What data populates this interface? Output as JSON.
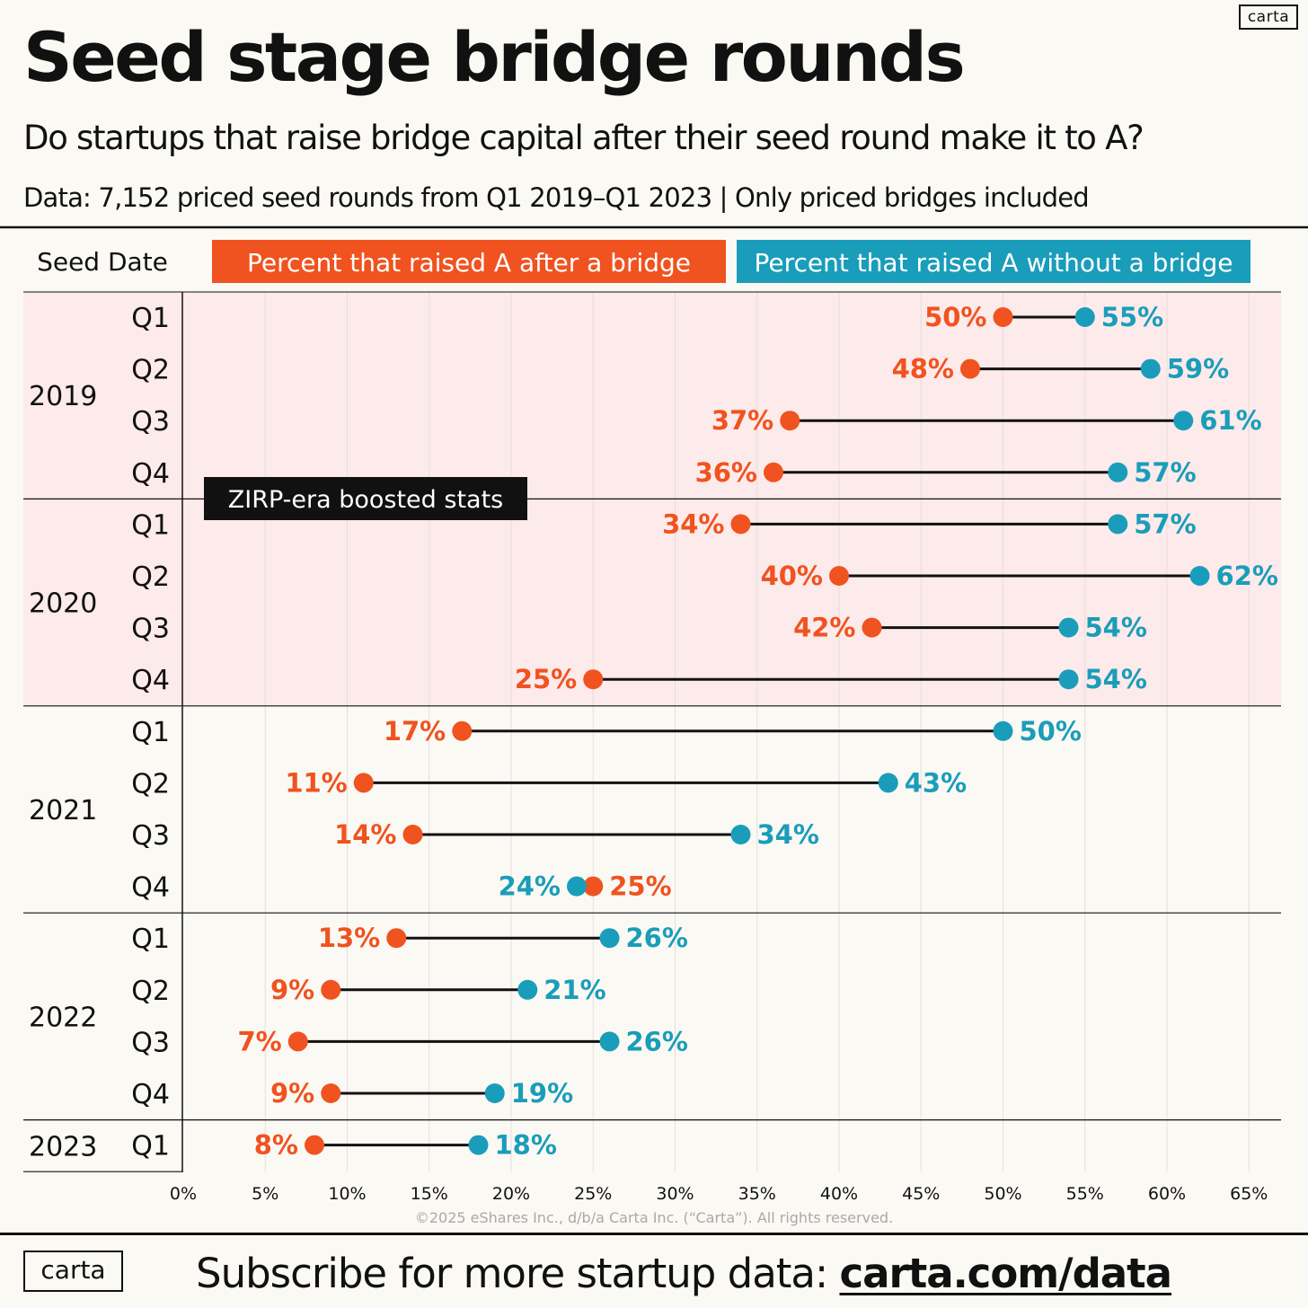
{
  "branding": {
    "logo_text": "carta"
  },
  "header": {
    "title": "Seed stage bridge rounds",
    "subtitle": "Do startups that raise bridge capital after their seed round make it to A?",
    "source": "Data: 7,152 priced seed rounds from Q1 2019–Q1 2023 | Only priced bridges included"
  },
  "colors": {
    "bridge": "#f0531f",
    "no_bridge": "#1a9dba",
    "zirp_band": "#fdeaea",
    "background": "#fbf9f4",
    "text": "#111111"
  },
  "chart_data": {
    "type": "dumbbell",
    "row_header": "Seed Date",
    "series": [
      {
        "name": "Percent that raised A after a bridge",
        "values": [
          50,
          48,
          37,
          36,
          34,
          40,
          42,
          25,
          17,
          11,
          14,
          25,
          13,
          9,
          7,
          9,
          8
        ]
      },
      {
        "name": "Percent that raised A without a bridge",
        "values": [
          55,
          59,
          61,
          57,
          57,
          62,
          54,
          54,
          50,
          43,
          34,
          24,
          26,
          21,
          26,
          19,
          18
        ]
      }
    ],
    "groups": [
      {
        "year": "2019",
        "quarters": [
          "Q1",
          "Q2",
          "Q3",
          "Q4"
        ]
      },
      {
        "year": "2020",
        "quarters": [
          "Q1",
          "Q2",
          "Q3",
          "Q4"
        ]
      },
      {
        "year": "2021",
        "quarters": [
          "Q1",
          "Q2",
          "Q3",
          "Q4"
        ]
      },
      {
        "year": "2022",
        "quarters": [
          "Q1",
          "Q2",
          "Q3",
          "Q4"
        ]
      },
      {
        "year": "2023",
        "quarters": [
          "Q1"
        ]
      }
    ],
    "x_ticks": [
      "0%",
      "5%",
      "10%",
      "15%",
      "20%",
      "25%",
      "30%",
      "35%",
      "40%",
      "45%",
      "50%",
      "55%",
      "60%",
      "65%"
    ],
    "xlim": [
      0,
      65
    ],
    "value_suffix": "%",
    "highlight": {
      "label": "ZIRP-era boosted stats",
      "years": [
        "2019",
        "2020"
      ]
    },
    "grid": true,
    "legend_position": "top"
  },
  "footer": {
    "copyright": "©2025 eShares Inc., d/b/a Carta Inc. (“Carta”). All rights reserved.",
    "cta_text": "Subscribe for more startup data: ",
    "cta_link": "carta.com/data"
  }
}
